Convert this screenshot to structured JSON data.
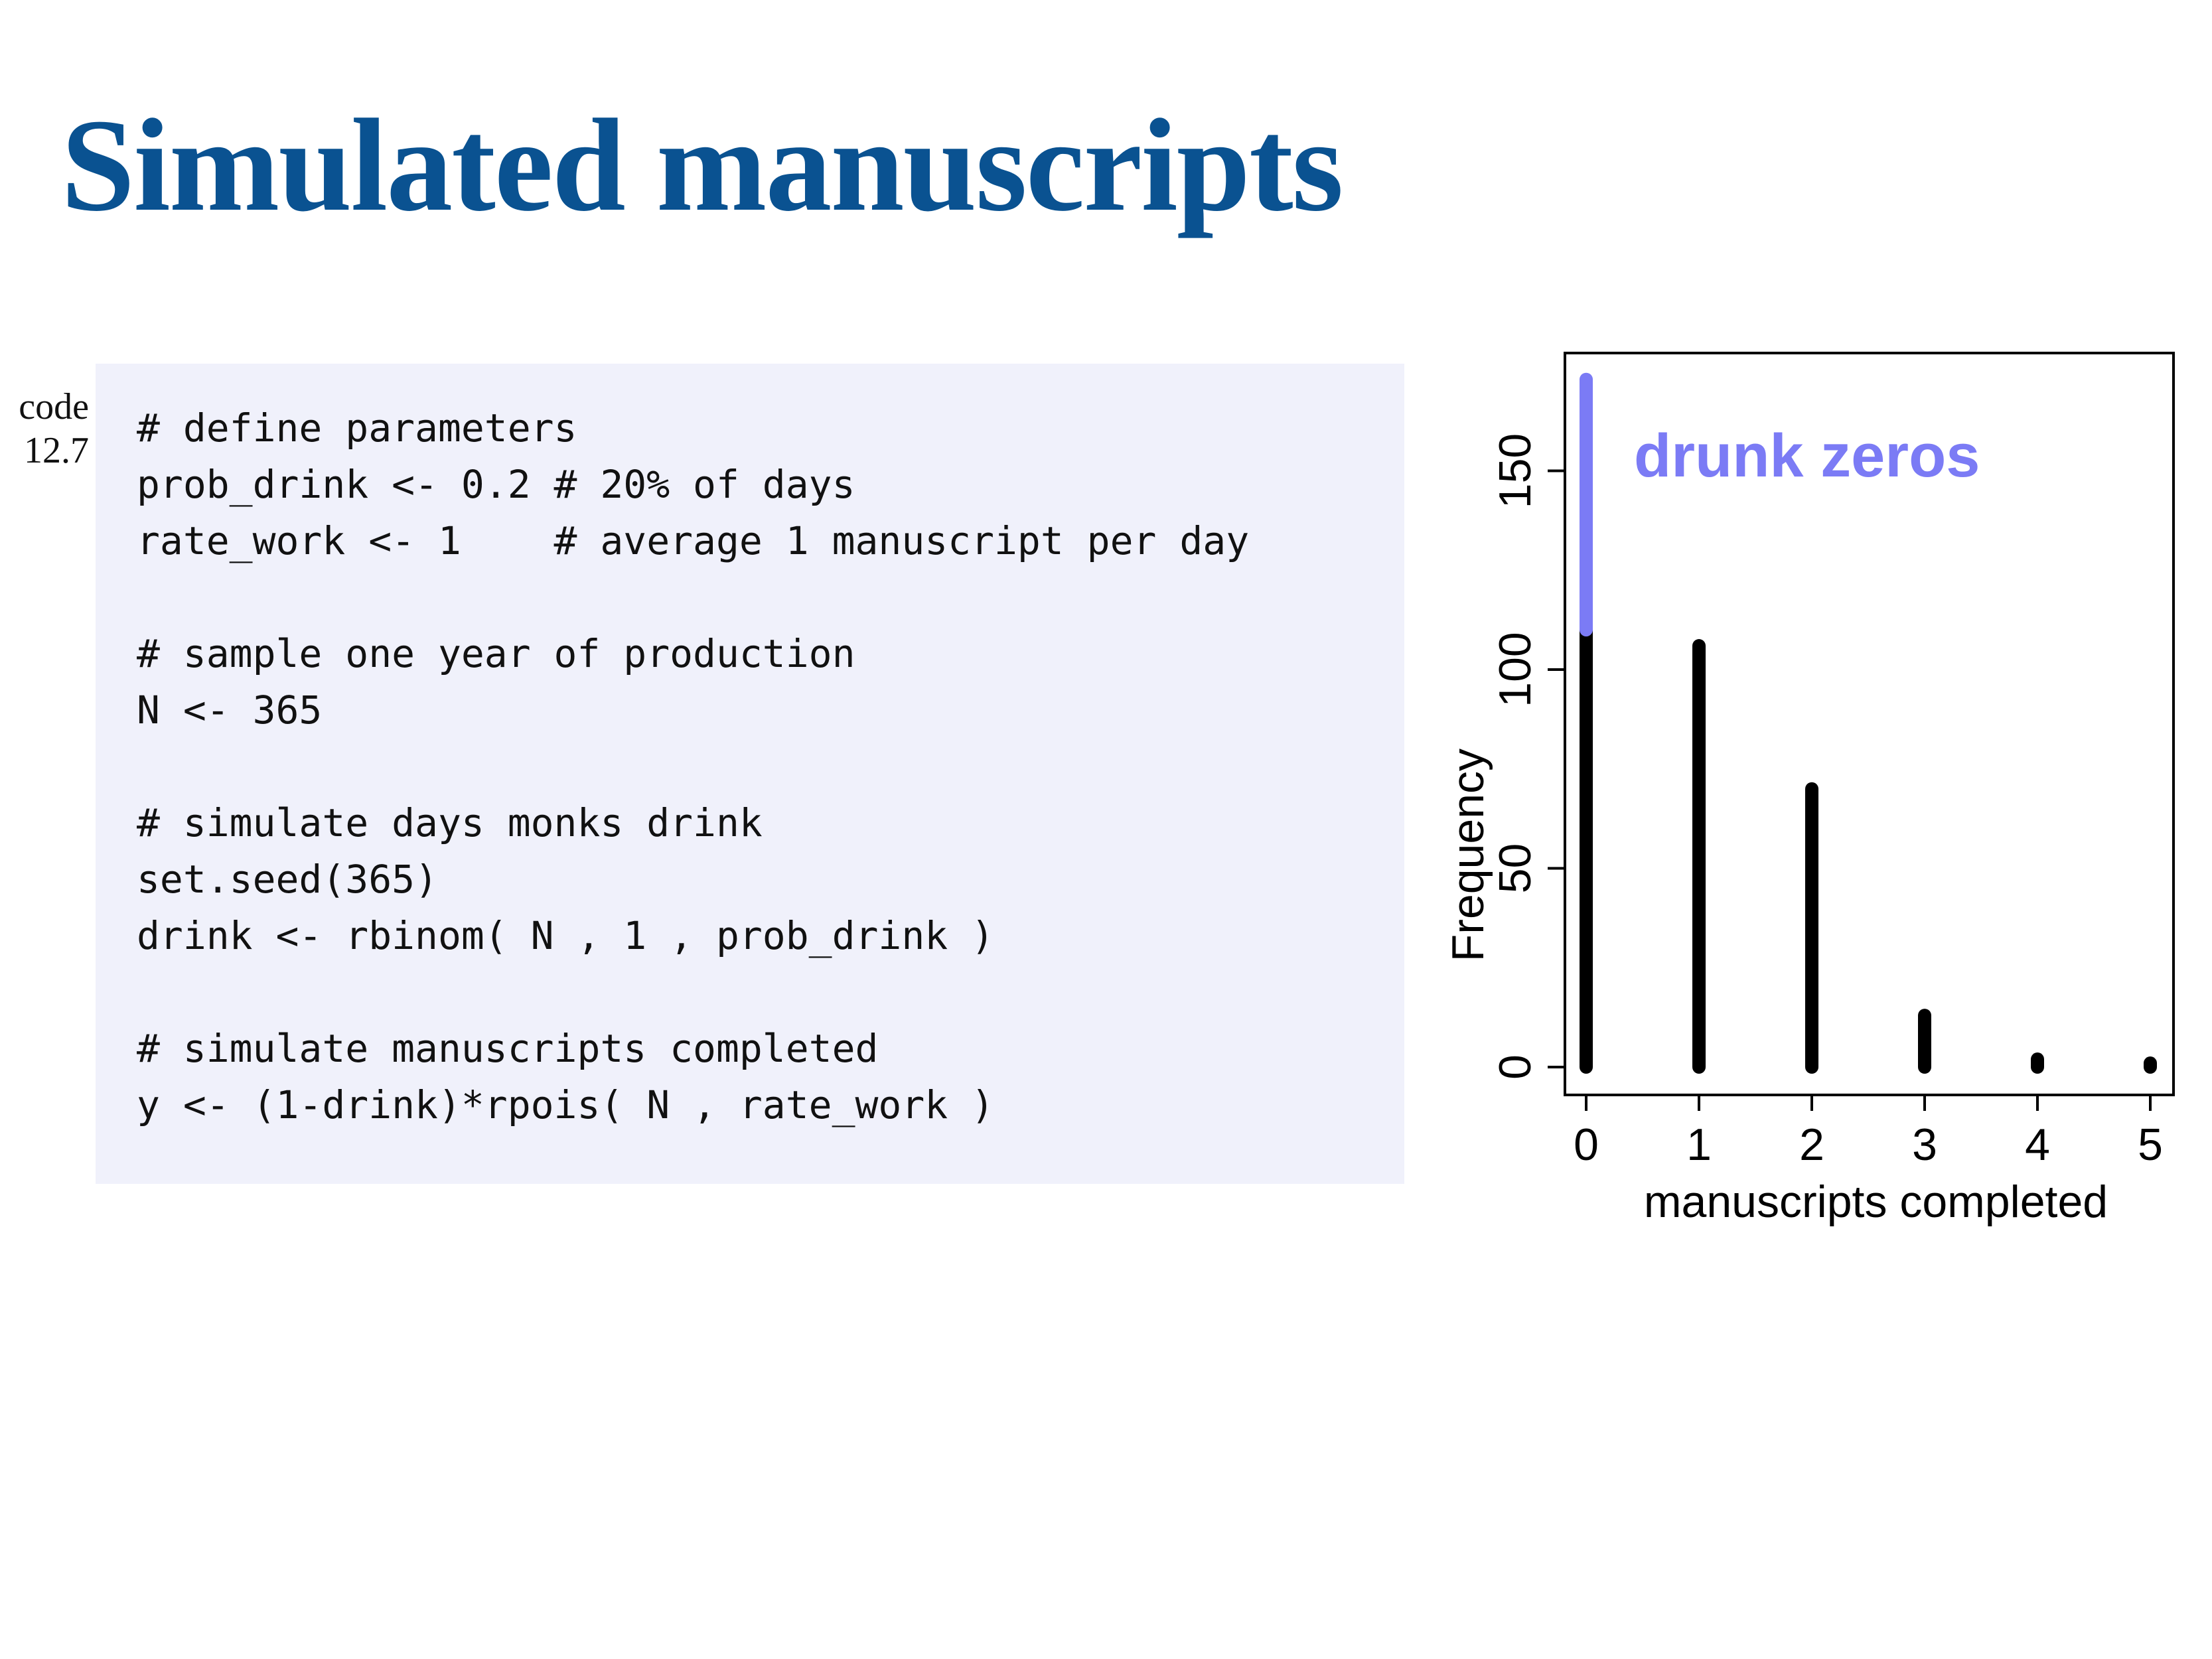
{
  "slide": {
    "title": "Simulated manuscripts"
  },
  "code_label": {
    "line1": "code",
    "line2": "12.7"
  },
  "code": {
    "lines": [
      "# define parameters",
      "prob_drink <- 0.2 # 20% of days",
      "rate_work <- 1    # average 1 manuscript per day",
      "",
      "# sample one year of production",
      "N <- 365",
      "",
      "# simulate days monks drink",
      "set.seed(365)",
      "drink <- rbinom( N , 1 , prob_drink )",
      "",
      "# simulate manuscripts completed",
      "y <- (1-drink)*rpois( N , rate_work )"
    ]
  },
  "chart_data": {
    "type": "bar",
    "title": "",
    "xlabel": "manuscripts completed",
    "ylabel": "Frequency",
    "categories": [
      0,
      1,
      2,
      3,
      4,
      5
    ],
    "xlim": [
      0,
      5
    ],
    "ylim": [
      0,
      180
    ],
    "x_ticks": [
      0,
      1,
      2,
      3,
      4,
      5
    ],
    "y_ticks": [
      0,
      50,
      100,
      150
    ],
    "grid": false,
    "series": [
      {
        "values": [
          110,
          106,
          70,
          13,
          2,
          1
        ],
        "color": "#000000"
      },
      {
        "name": "drunk zeros",
        "values": [
          63,
          0,
          0,
          0,
          0,
          0
        ],
        "color": "#7b7bf5"
      }
    ],
    "annotations": [
      {
        "text": "drunk zeros",
        "color": "#7b7bf5"
      }
    ]
  }
}
